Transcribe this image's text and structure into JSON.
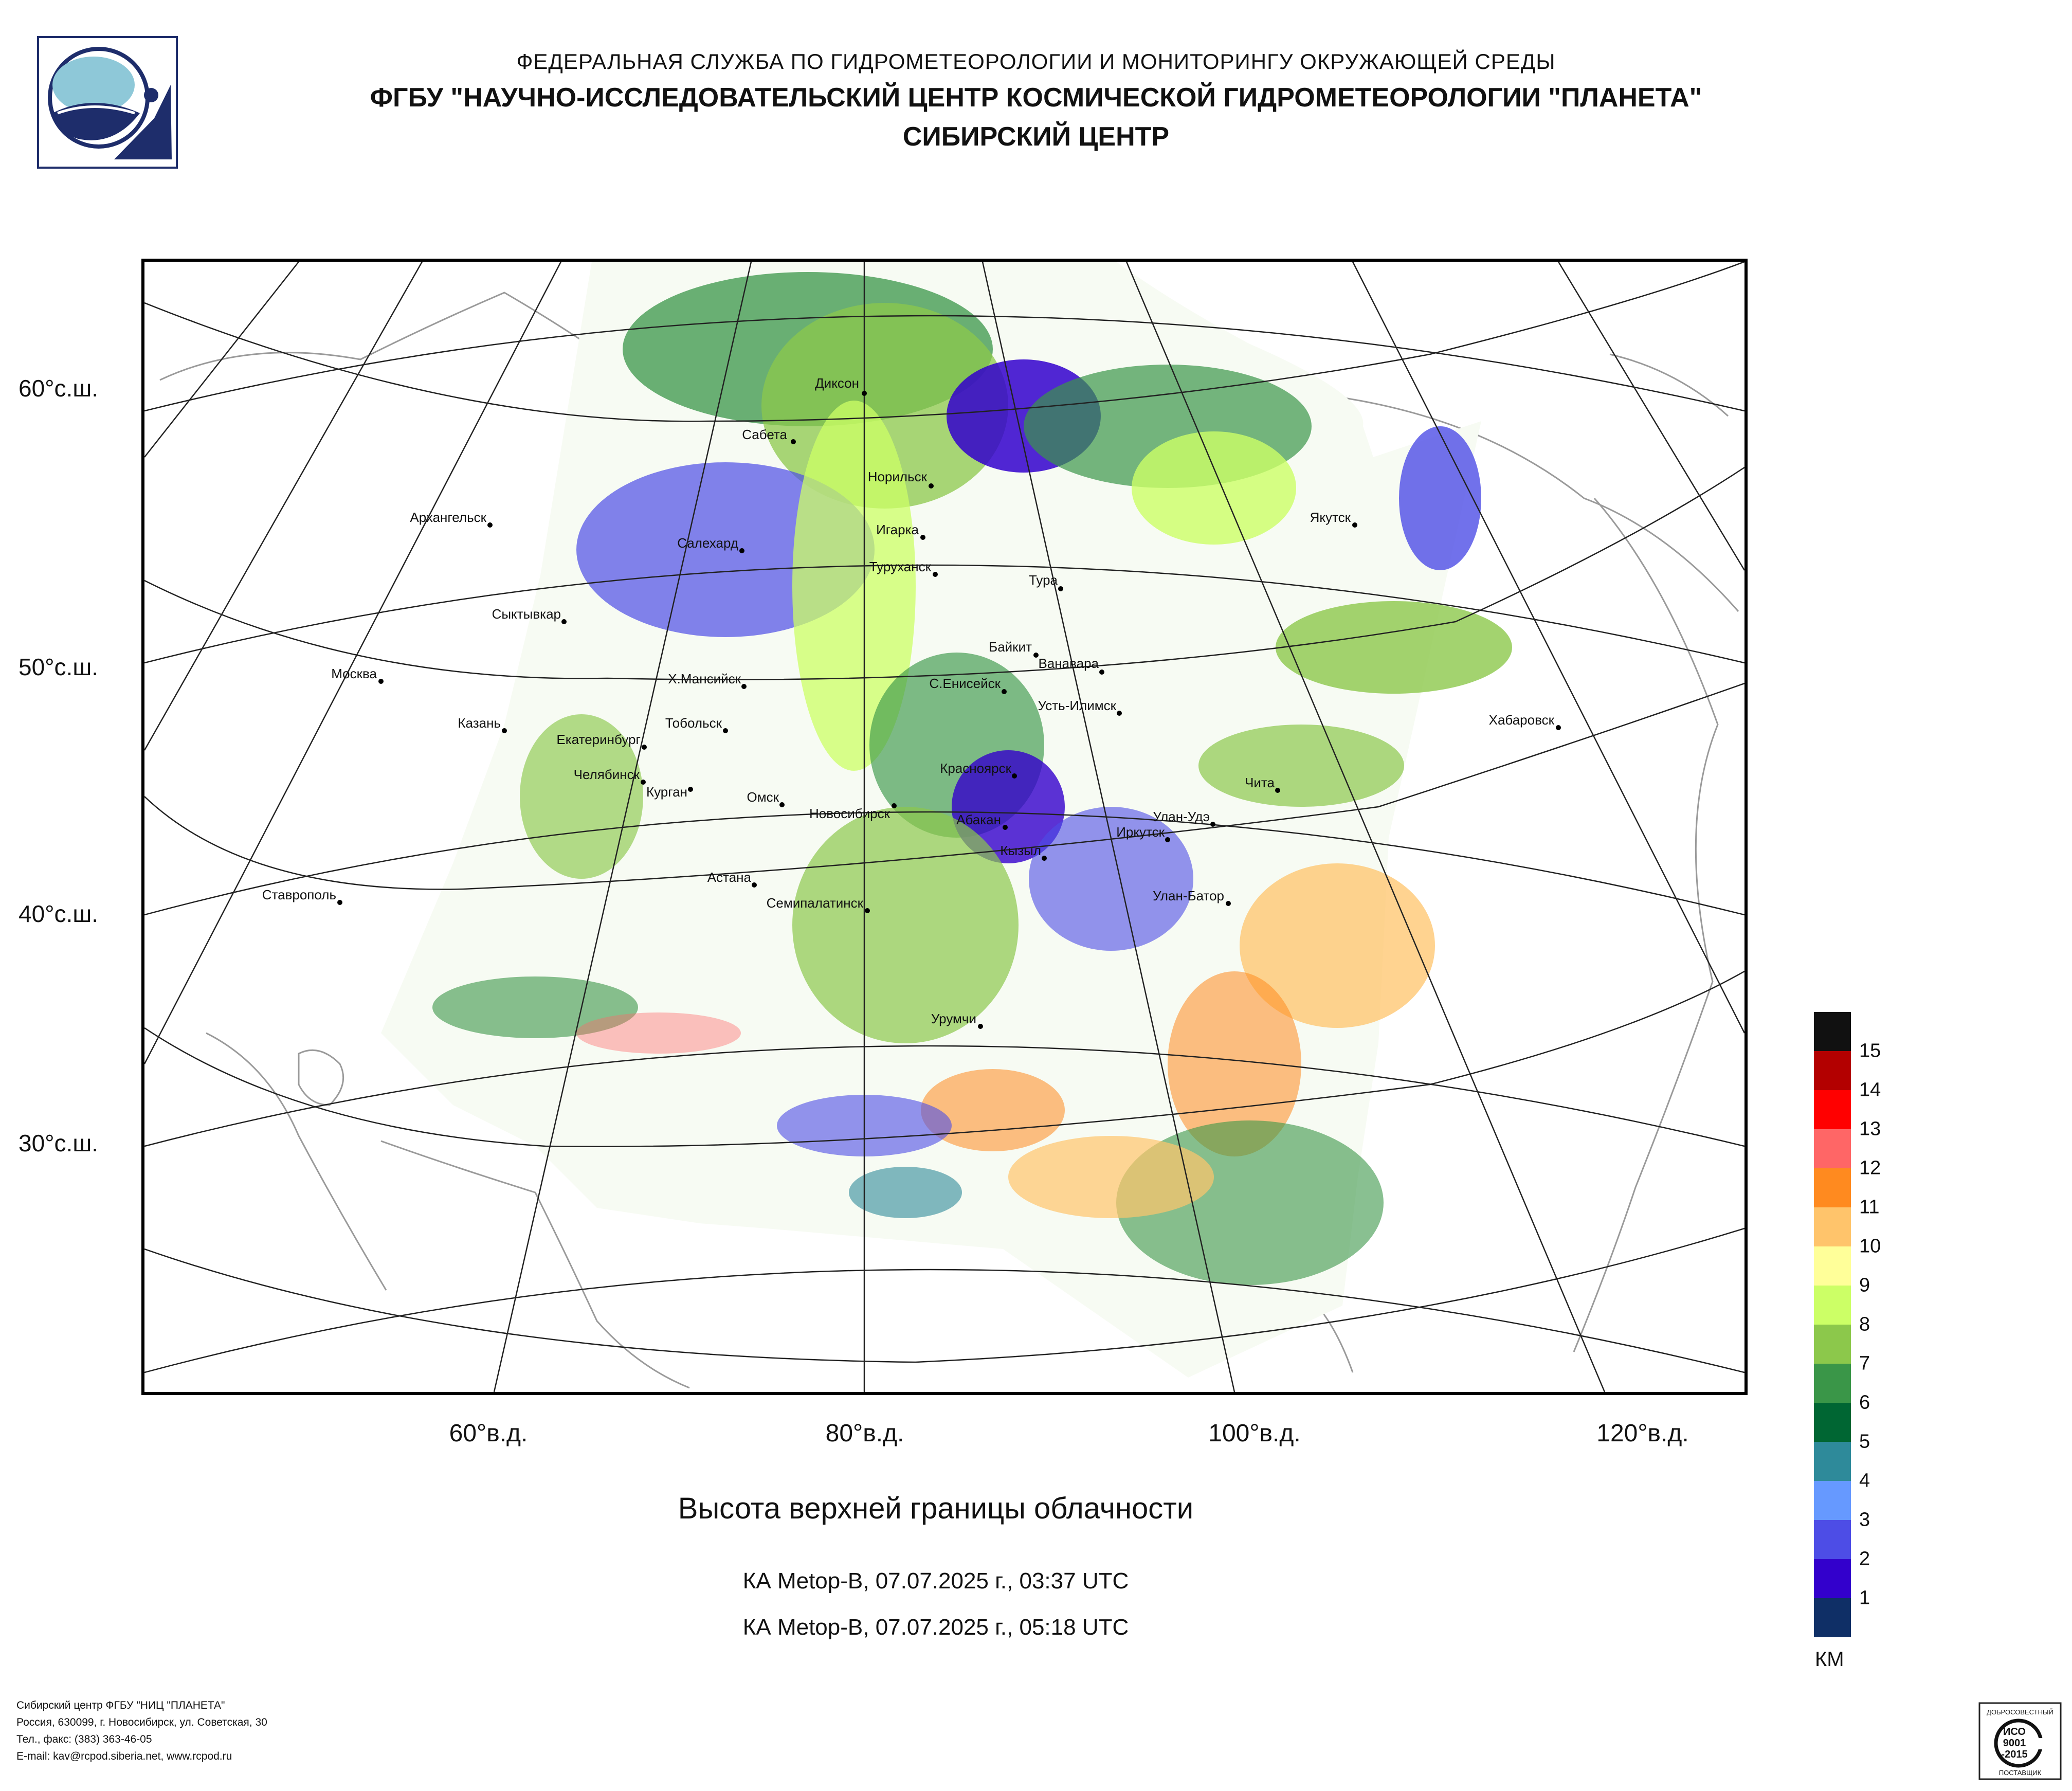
{
  "header": {
    "line1": "ФЕДЕРАЛЬНАЯ СЛУЖБА ПО ГИДРОМЕТЕОРОЛОГИИ И МОНИТОРИНГУ ОКРУЖАЮЩЕЙ СРЕДЫ",
    "line2": "ФГБУ \"НАУЧНО-ИССЛЕДОВАТЕЛЬСКИЙ ЦЕНТР КОСМИЧЕСКОЙ ГИДРОМЕТЕОРОЛОГИИ \"ПЛАНЕТА\"",
    "line3": "СИБИРСКИЙ ЦЕНТР"
  },
  "map": {
    "latitude_labels": [
      "60°с.ш.",
      "50°с.ш.",
      "40°с.ш.",
      "30°с.ш."
    ],
    "longitude_labels": [
      "60°в.д.",
      "80°в.д.",
      "100°в.д.",
      "120°в.д."
    ],
    "cities": [
      "Диксон",
      "Сабета",
      "Норильск",
      "Игарка",
      "Туруханск",
      "Салехард",
      "Архангельск",
      "Якутск",
      "Тура",
      "Сыктывкар",
      "Байкит",
      "Ванавара",
      "Х.Мансийск",
      "С.Енисейск",
      "Москва",
      "Усть-Илимск",
      "Казань",
      "Тобольск",
      "Екатеринбург",
      "Хабаровск",
      "Красноярск",
      "Челябинск",
      "Курган",
      "Чита",
      "Омск",
      "Новосибирск",
      "Абакан",
      "Улан-Удэ",
      "Иркутск",
      "Кызыл",
      "Астана",
      "Ставрополь",
      "Семипалатинск",
      "Улан-Батор",
      "Урумчи"
    ],
    "colors": {
      "land": "#ffffff",
      "coastline": "#9a9a9a",
      "graticule": "#222222"
    }
  },
  "product": {
    "title": "Высота верхней границы облачности",
    "passes": [
      "КА Metop-B, 07.07.2025 г., 03:37 UTC",
      "КА Metop-B, 07.07.2025 г., 05:18 UTC"
    ]
  },
  "legend": {
    "unit": "КМ",
    "labels": [
      "15",
      "14",
      "13",
      "12",
      "11",
      "10",
      "9",
      "8",
      "7",
      "6",
      "5",
      "4",
      "3",
      "2",
      "1"
    ],
    "colors": [
      "#111111",
      "#b30000",
      "#ff0000",
      "#ff6666",
      "#ff8a1f",
      "#ffc46b",
      "#ffff99",
      "#ccff66",
      "#8cc84b",
      "#3a9648",
      "#006633",
      "#2e8a9a",
      "#6699ff",
      "#4d4de6",
      "#3300cc",
      "#0f2f66"
    ]
  },
  "footer": {
    "lines": [
      "Сибирский центр ФГБУ \"НИЦ \"ПЛАНЕТА\"",
      "Россия, 630099, г. Новосибирск, ул. Советская, 30",
      "Тел., факс: (383) 363-46-05",
      "E-mail: kav@rcpod.siberia.net, www.rcpod.ru"
    ]
  },
  "certificate": {
    "top": "ДОБРОСОВЕСТНЫЙ",
    "line1": "ИСО",
    "line2": "9001",
    "line3": "-2015",
    "bottom": "ПОСТАВЩИК"
  }
}
